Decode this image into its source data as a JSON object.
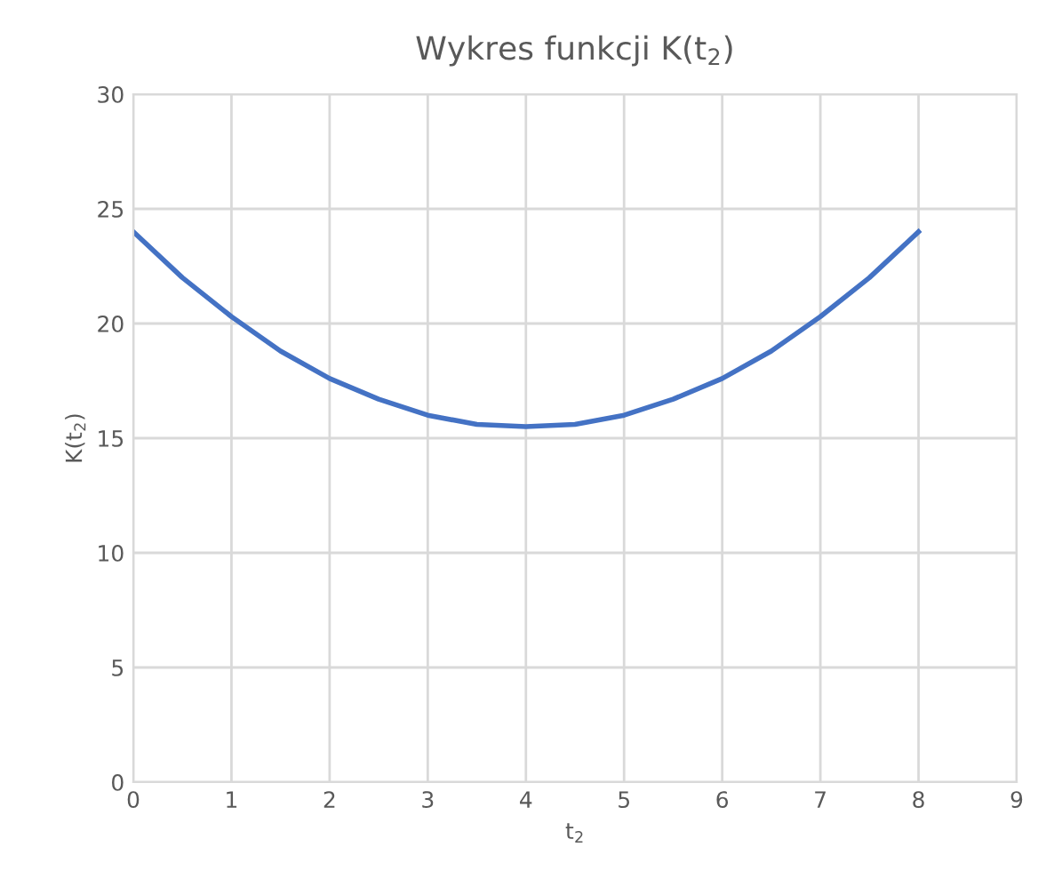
{
  "chart_data": {
    "type": "line",
    "title": "Wykres funkcji K(t$_{2}$)",
    "xlabel": "t$_{2}$",
    "ylabel": "K(t$_{2}$)",
    "x": [
      0,
      0.5,
      1,
      1.5,
      2,
      2.5,
      3,
      3.5,
      4,
      4.5,
      5,
      5.5,
      6,
      6.5,
      7,
      7.5,
      8
    ],
    "series": [
      {
        "color": "#4472c4",
        "values": [
          24,
          22.0,
          20.3,
          18.8,
          17.6,
          16.7,
          16.0,
          15.6,
          15.5,
          15.6,
          16.0,
          16.7,
          17.6,
          18.8,
          20.3,
          22.0,
          24
        ]
      }
    ],
    "xlim": [
      0,
      9
    ],
    "xticks": [
      0,
      1,
      2,
      3,
      4,
      5,
      6,
      7,
      8,
      9
    ],
    "ylim": [
      0,
      30
    ],
    "yticks": [
      0,
      5,
      10,
      15,
      20,
      25,
      30
    ],
    "grid": true,
    "marker": "none",
    "line_style": "solid"
  }
}
